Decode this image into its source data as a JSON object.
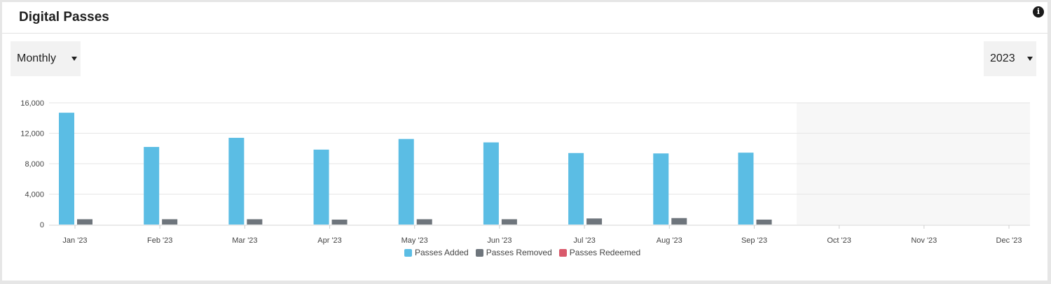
{
  "header": {
    "title": "Digital Passes",
    "info_icon": "info-icon"
  },
  "controls": {
    "period": {
      "selected": "Monthly"
    },
    "year": {
      "selected": "2023"
    }
  },
  "colors": {
    "passes_added": "#5bbde4",
    "passes_removed": "#6e757c",
    "passes_redeemed": "#d9596b",
    "grid": "#e6e6e6",
    "future_shade": "#f7f7f7"
  },
  "chart_data": {
    "type": "bar",
    "title": "",
    "xlabel": "",
    "ylabel": "",
    "categories": [
      "Jan '23",
      "Feb '23",
      "Mar '23",
      "Apr '23",
      "May '23",
      "Jun '23",
      "Jul '23",
      "Aug '23",
      "Sep '23",
      "Oct '23",
      "Nov '23",
      "Dec '23"
    ],
    "series": [
      {
        "name": "Passes Added",
        "values": [
          14700,
          10200,
          11400,
          9850,
          11250,
          10800,
          9400,
          9350,
          9450,
          0,
          0,
          0
        ]
      },
      {
        "name": "Passes Removed",
        "values": [
          700,
          700,
          700,
          650,
          700,
          700,
          800,
          850,
          650,
          0,
          0,
          0
        ]
      },
      {
        "name": "Passes Redeemed",
        "values": [
          0,
          0,
          0,
          0,
          0,
          0,
          0,
          0,
          0,
          0,
          0,
          0
        ]
      }
    ],
    "yticks": [
      "0",
      "4,000",
      "8,000",
      "12,000",
      "16,000"
    ],
    "ylim": [
      0,
      16000
    ],
    "grid": true,
    "legend_position": "bottom-center",
    "future_shaded_from": "Oct '23"
  }
}
